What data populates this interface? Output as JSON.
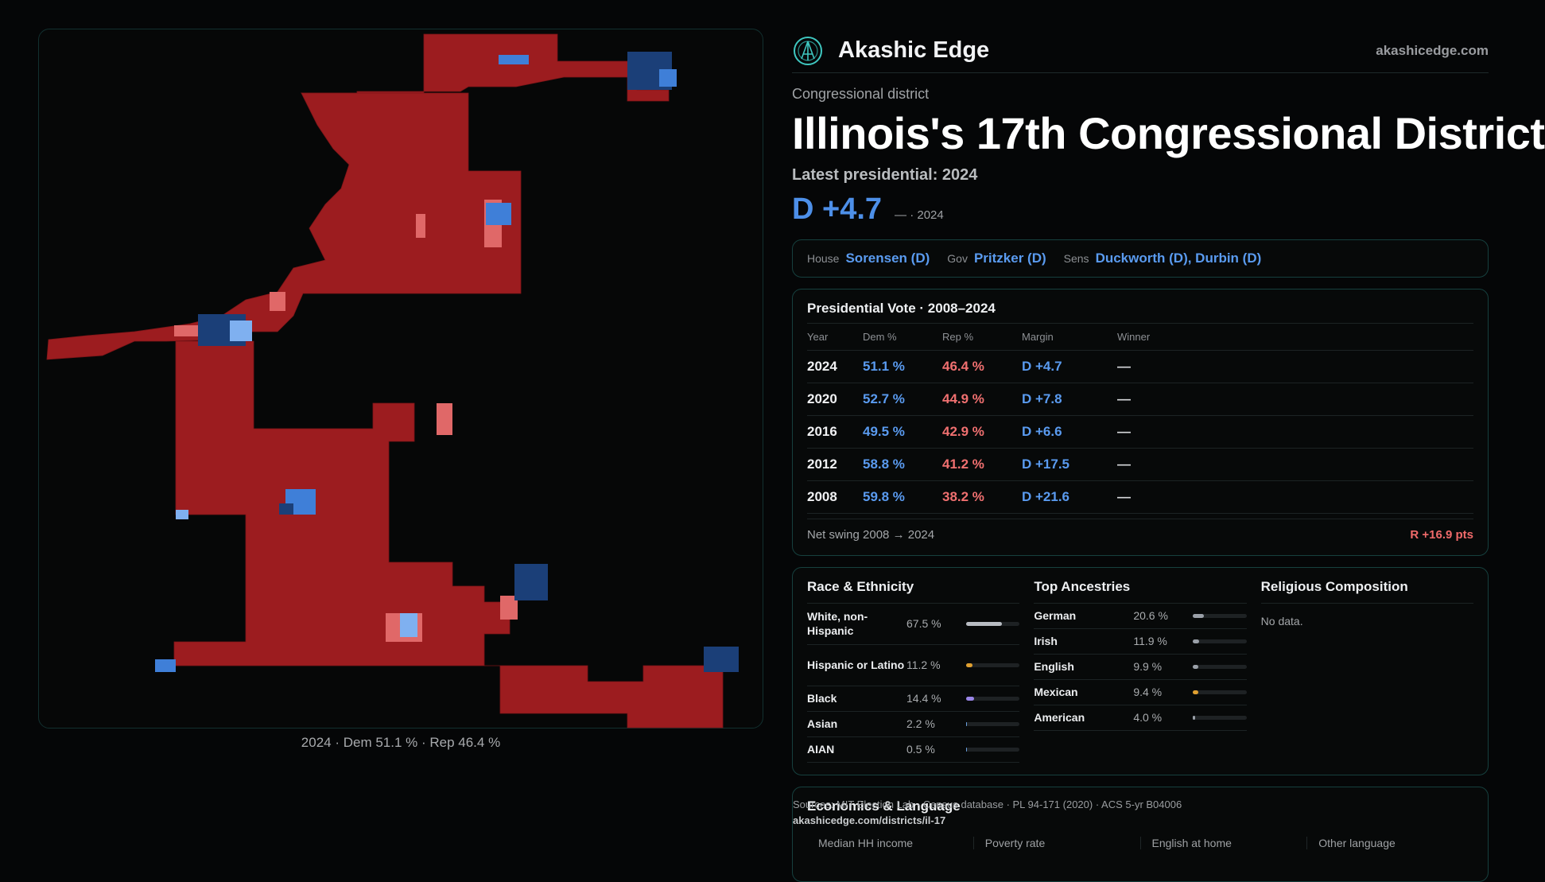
{
  "brand": {
    "name": "Akashic Edge",
    "url": "akashicedge.com"
  },
  "district": {
    "kicker": "Congressional district",
    "title": "Illinois's 17th Congressional District",
    "latest": "Latest presidential: 2024",
    "margin": "D +4.7",
    "margin_sub": "— · 2024"
  },
  "reps": [
    {
      "label": "House",
      "value": "Sorensen (D)"
    },
    {
      "label": "Gov",
      "value": "Pritzker (D)"
    },
    {
      "label": "Sens",
      "value": "Duckworth (D), Durbin (D)"
    }
  ],
  "presidential": {
    "title": "Presidential Vote · 2008–2024",
    "headers": [
      "Year",
      "Dem %",
      "Rep %",
      "Margin",
      "Winner"
    ],
    "rows": [
      {
        "year": "2024",
        "dem": "51.1 %",
        "rep": "46.4 %",
        "margin": "D +4.7",
        "winner": "—"
      },
      {
        "year": "2020",
        "dem": "52.7 %",
        "rep": "44.9 %",
        "margin": "D +7.8",
        "winner": "—"
      },
      {
        "year": "2016",
        "dem": "49.5 %",
        "rep": "42.9 %",
        "margin": "D +6.6",
        "winner": "—"
      },
      {
        "year": "2012",
        "dem": "58.8 %",
        "rep": "41.2 %",
        "margin": "D +17.5",
        "winner": "—"
      },
      {
        "year": "2008",
        "dem": "59.8 %",
        "rep": "38.2 %",
        "margin": "D +21.6",
        "winner": "—"
      }
    ],
    "net_swing_label": "Net swing 2008 → 2024",
    "net_swing_value": "R +16.9 pts"
  },
  "race": {
    "title": "Race & Ethnicity",
    "items": [
      {
        "name": "White, non-Hispanic",
        "value": "67.5 %",
        "fraction": 0.675,
        "color": "#b8bcc2"
      },
      {
        "name": "Hispanic or Latino",
        "value": "11.2 %",
        "fraction": 0.112,
        "color": "#e0a030"
      },
      {
        "name": "Black",
        "value": "14.4 %",
        "fraction": 0.144,
        "color": "#9a86e8"
      },
      {
        "name": "Asian",
        "value": "2.2 %",
        "fraction": 0.022,
        "color": "#6aa0e0"
      },
      {
        "name": "AIAN",
        "value": "0.5 %",
        "fraction": 0.005,
        "color": "#6aa0e0"
      }
    ]
  },
  "ancestries": {
    "title": "Top Ancestries",
    "items": [
      {
        "name": "German",
        "value": "20.6 %",
        "fraction": 0.206,
        "color": "#9aa0a8"
      },
      {
        "name": "Irish",
        "value": "11.9 %",
        "fraction": 0.119,
        "color": "#9aa0a8"
      },
      {
        "name": "English",
        "value": "9.9 %",
        "fraction": 0.099,
        "color": "#9aa0a8"
      },
      {
        "name": "Mexican",
        "value": "9.4 %",
        "fraction": 0.094,
        "color": "#e0a030"
      },
      {
        "name": "American",
        "value": "4.0 %",
        "fraction": 0.04,
        "color": "#9aa0a8"
      }
    ]
  },
  "religion": {
    "title": "Religious Composition",
    "note": "No data."
  },
  "economics": {
    "title": "Economics & Language",
    "stats": [
      "Median HH income",
      "Poverty rate",
      "English at home",
      "Other language"
    ]
  },
  "sources": {
    "text": "Sources: MIT Election Lab · Census database · PL 94-171 (2020) · ACS 5-yr B04006",
    "url": "akashicedge.com/districts/il-17"
  },
  "map": {
    "caption": "2024 · Dem 51.1 % · Rep 46.4 %",
    "colors": {
      "rep_dark": "#9c1c1f",
      "rep_mid": "#a42326",
      "rep_light": "#e06868",
      "dem_dark": "#1b3f78",
      "dem_mid": "#3f7fd8",
      "dem_light": "#7fb0f0"
    }
  }
}
